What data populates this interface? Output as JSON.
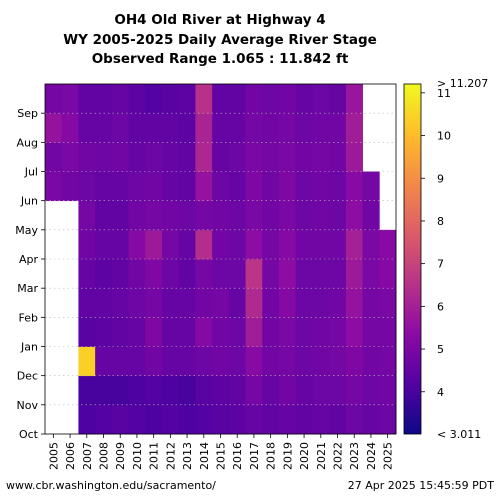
{
  "chart_data": {
    "type": "heatmap",
    "title_lines": [
      "OH4 Old River at Highway 4",
      "WY 2005-2025 Daily Average River Stage",
      "Observed Range 1.065 : 11.842 ft"
    ],
    "xlabel": "",
    "ylabel": "",
    "x_categories": [
      "2005",
      "2006",
      "2007",
      "2008",
      "2009",
      "2010",
      "2011",
      "2012",
      "2013",
      "2014",
      "2015",
      "2016",
      "2017",
      "2018",
      "2019",
      "2020",
      "2021",
      "2022",
      "2023",
      "2024",
      "2025"
    ],
    "y_categories": [
      "Oct",
      "Nov",
      "Dec",
      "Jan",
      "Feb",
      "Mar",
      "Apr",
      "May",
      "Jun",
      "Jul",
      "Aug",
      "Sep"
    ],
    "value_range": [
      3.011,
      11.207
    ],
    "colorbar_ticks": [
      4,
      5,
      6,
      7,
      8,
      9,
      10,
      11
    ],
    "colorbar_top_label": "> 11.207",
    "colorbar_bottom_label": "< 3.011",
    "colormap": "plasma",
    "cells": [
      [
        null,
        null,
        null,
        null,
        null,
        null,
        null,
        null,
        5.0,
        4.8,
        5.6,
        4.9
      ],
      [
        null,
        null,
        null,
        null,
        null,
        null,
        null,
        null,
        4.8,
        5.0,
        5.2,
        5.0
      ],
      [
        4.1,
        4.0,
        10.4,
        4.3,
        4.5,
        4.6,
        4.8,
        4.9,
        4.7,
        4.8,
        4.6,
        4.5
      ],
      [
        4.2,
        4.0,
        4.6,
        4.4,
        4.5,
        4.4,
        4.6,
        4.5,
        4.6,
        4.7,
        4.6,
        4.5
      ],
      [
        4.3,
        4.0,
        4.6,
        4.5,
        4.6,
        4.5,
        4.6,
        4.5,
        4.6,
        4.8,
        4.7,
        4.6
      ],
      [
        4.2,
        4.1,
        4.6,
        4.6,
        4.7,
        4.8,
        5.2,
        4.8,
        4.7,
        4.6,
        4.5,
        4.4
      ],
      [
        4.1,
        4.2,
        4.8,
        5.1,
        4.9,
        5.1,
        5.8,
        4.9,
        4.8,
        4.7,
        4.5,
        4.2
      ],
      [
        4.2,
        4.1,
        4.6,
        4.6,
        4.6,
        4.7,
        4.9,
        4.8,
        4.6,
        4.6,
        4.5,
        4.3
      ],
      [
        4.1,
        4.0,
        4.6,
        4.6,
        4.6,
        4.5,
        4.6,
        4.7,
        4.5,
        4.5,
        4.4,
        4.4
      ],
      [
        4.2,
        4.3,
        4.7,
        5.2,
        4.8,
        4.9,
        6.4,
        4.9,
        5.6,
        6.2,
        6.1,
        6.5
      ],
      [
        4.3,
        4.4,
        4.8,
        4.8,
        4.9,
        4.7,
        4.8,
        4.8,
        4.7,
        4.6,
        4.6,
        4.5
      ],
      [
        4.4,
        4.5,
        4.7,
        4.7,
        4.6,
        4.7,
        4.7,
        4.7,
        4.6,
        4.7,
        4.6,
        4.5
      ],
      [
        4.6,
        4.9,
        5.3,
        5.9,
        6.3,
        6.6,
        5.4,
        5.0,
        5.1,
        5.0,
        4.9,
        4.8
      ],
      [
        4.5,
        4.6,
        4.8,
        4.8,
        4.8,
        4.9,
        4.9,
        4.8,
        4.8,
        4.9,
        4.8,
        4.7
      ],
      [
        4.6,
        4.8,
        4.9,
        5.0,
        5.2,
        5.4,
        5.2,
        5.0,
        5.1,
        5.0,
        4.9,
        4.8
      ],
      [
        4.5,
        4.6,
        4.7,
        4.7,
        4.7,
        4.7,
        4.8,
        4.7,
        4.7,
        4.8,
        4.7,
        4.6
      ],
      [
        4.6,
        4.7,
        4.8,
        4.8,
        4.7,
        4.7,
        4.8,
        4.8,
        4.8,
        4.9,
        4.8,
        4.7
      ],
      [
        4.5,
        4.7,
        4.9,
        4.9,
        4.8,
        4.7,
        4.8,
        4.7,
        4.7,
        4.8,
        4.8,
        4.6
      ],
      [
        4.7,
        4.9,
        5.1,
        5.4,
        5.6,
        5.8,
        6.0,
        5.4,
        5.3,
        5.8,
        5.9,
        5.7
      ],
      [
        4.6,
        4.7,
        4.8,
        4.9,
        4.9,
        5.0,
        5.0,
        4.8,
        4.9,
        null,
        null,
        null
      ],
      [
        4.7,
        4.8,
        4.9,
        4.9,
        5.0,
        5.2,
        5.3,
        null,
        null,
        null,
        null,
        null
      ]
    ]
  }
}
